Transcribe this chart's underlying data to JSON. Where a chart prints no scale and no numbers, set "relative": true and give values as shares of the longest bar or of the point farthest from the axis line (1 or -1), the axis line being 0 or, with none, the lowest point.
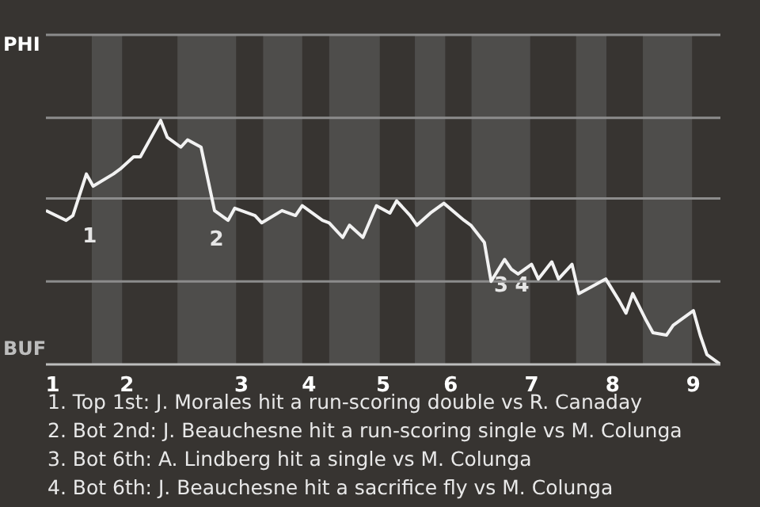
{
  "chart_data": {
    "type": "line",
    "marker": "none",
    "relative": true,
    "categories": [
      null,
      "1",
      null,
      null,
      null,
      null,
      null,
      null,
      null,
      null,
      null,
      null,
      "2",
      null,
      null,
      null,
      null,
      null,
      null,
      null,
      null,
      null,
      null,
      null,
      null,
      null,
      null,
      null,
      null,
      "3",
      null,
      null,
      null,
      null,
      null,
      null,
      null,
      null,
      null,
      "4",
      null,
      null,
      null,
      null,
      null,
      null,
      null,
      null,
      null,
      null,
      "5",
      null,
      null,
      null,
      null,
      null,
      null,
      null,
      null,
      null,
      "6",
      null,
      null,
      null,
      null,
      null,
      null,
      null,
      null,
      null,
      null,
      null,
      "7",
      null,
      null,
      null,
      null,
      null,
      null,
      null,
      null,
      null,
      null,
      null,
      "8",
      null,
      null,
      null,
      null,
      null,
      null,
      null,
      null,
      null,
      null,
      null,
      "9",
      null,
      null,
      null,
      null
    ],
    "series": [
      {
        "color": "#f2f2f2",
        "values": [
          0.63,
          null,
          null,
          0.59,
          0.61,
          null,
          0.78,
          0.73,
          null,
          null,
          0.78,
          0.8,
          null,
          0.85,
          0.85,
          null,
          null,
          1,
          0.93,
          null,
          0.89,
          0.92,
          null,
          0.89,
          null,
          0.63,
          null,
          0.59,
          0.64,
          null,
          null,
          0.61,
          0.58,
          null,
          null,
          0.63,
          null,
          0.61,
          0.65,
          null,
          null,
          0.59,
          0.58,
          null,
          0.52,
          0.57,
          null,
          0.52,
          null,
          0.65,
          null,
          0.62,
          0.67,
          null,
          0.61,
          0.57,
          null,
          0.62,
          null,
          0.66,
          null,
          null,
          0.59,
          0.57,
          null,
          0.5,
          0.34,
          null,
          0.43,
          0.39,
          0.37,
          null,
          0.41,
          0.35,
          null,
          0.42,
          0.35,
          null,
          0.41,
          0.29,
          null,
          0.32,
          null,
          0.35,
          null,
          0.26,
          0.21,
          0.29,
          null,
          0.18,
          0.13,
          null,
          0.12,
          0.16,
          null,
          null,
          0.22,
          0.12,
          0.04,
          null,
          0
        ]
      }
    ],
    "ref_lines": [
      {
        "axis": "y",
        "value": 0.34,
        "color": "#8c8c8c"
      },
      {
        "axis": "y",
        "value": 0.68,
        "color": "#8c8c8c"
      },
      {
        "axis": "y",
        "value": 1.01,
        "color": "#8c8c8c"
      },
      {
        "axis": "y",
        "value": 1.35,
        "color": "#8c8c8c"
      }
    ],
    "annotations": [
      "PHI",
      "BUF",
      "1",
      "2",
      "3",
      "4",
      "1. Top 1st: J. Morales hit a run-scoring double vs R. Canaday",
      "2. Bot 2nd: J. Beauchesne hit a run-scoring single vs M. Colunga",
      "3. Bot 6th: A. Lindberg hit a single vs M. Colunga",
      "4. Bot 6th: J. Beauchesne hit a sacrifice fly vs M. Colunga"
    ]
  }
}
